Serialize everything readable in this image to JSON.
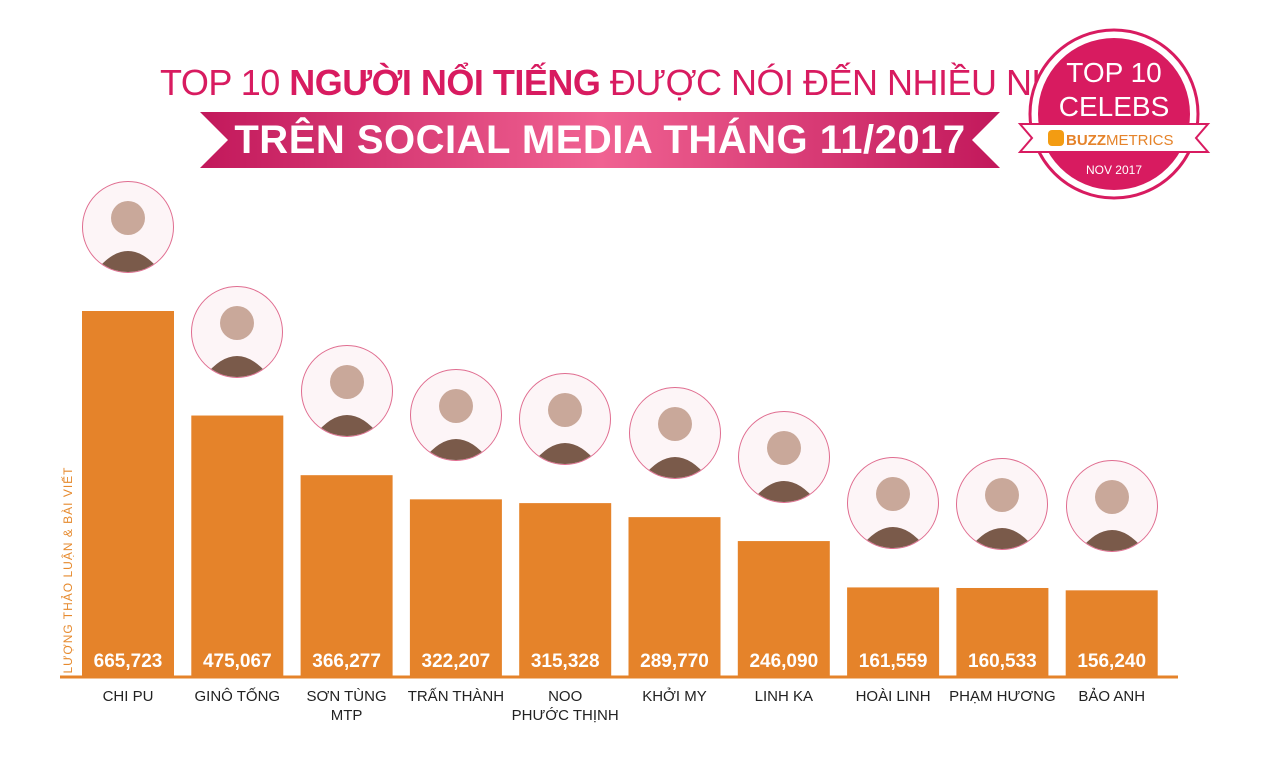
{
  "title": {
    "line1_pre": "TOP 10 ",
    "line1_bold": "NGƯỜI NỔI TIẾNG",
    "line1_post": " ĐƯỢC NÓI ĐẾN NHIỀU NHẤT",
    "line2": "TRÊN SOCIAL MEDIA THÁNG 11/2017"
  },
  "badge": {
    "line1": "TOP 10",
    "line2": "CELEBS",
    "brand_bold": "BUZZ",
    "brand_rest": "METRICS",
    "date": "NOV 2017"
  },
  "colors": {
    "bar": "#e5832a",
    "accent": "#d81b60",
    "axis": "#e5832a"
  },
  "chart_data": {
    "type": "bar",
    "ylabel": "LƯỢNG THẢO LUẬN & BÀI VIẾT",
    "categories": [
      "CHI PU",
      "GINÔ TỐNG",
      "SƠN TÙNG\nMTP",
      "TRẤN THÀNH",
      "NOO\nPHƯỚC THỊNH",
      "KHỞI MY",
      "LINH KA",
      "HOÀI LINH",
      "PHẠM HƯƠNG",
      "BẢO ANH"
    ],
    "values": [
      665723,
      475067,
      366277,
      322207,
      315328,
      289770,
      246090,
      161559,
      160533,
      156240
    ],
    "value_labels": [
      "665,723",
      "475,067",
      "366,277",
      "322,207",
      "315,328",
      "289,770",
      "246,090",
      "161,559",
      "160,533",
      "156,240"
    ],
    "ylim": [
      0,
      665723
    ],
    "grid": false,
    "legend": "none"
  }
}
